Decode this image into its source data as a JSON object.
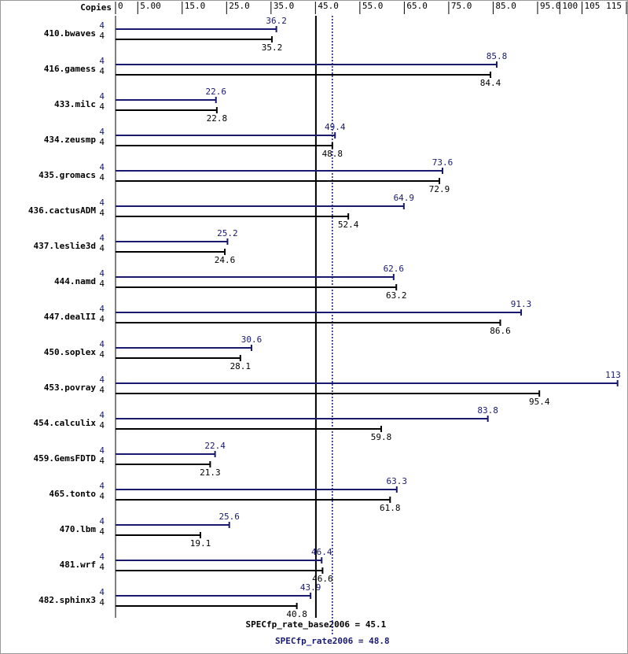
{
  "chart_data": {
    "type": "bar",
    "copies_label": "Copies",
    "categories": [
      "410.bwaves",
      "416.gamess",
      "433.milc",
      "434.zeusmp",
      "435.gromacs",
      "436.cactusADM",
      "437.leslie3d",
      "444.namd",
      "447.dealII",
      "450.soplex",
      "453.povray",
      "454.calculix",
      "459.GemsFDTD",
      "465.tonto",
      "470.lbm",
      "481.wrf",
      "482.sphinx3"
    ],
    "series": [
      {
        "color": "#191970",
        "copies": [
          4,
          4,
          4,
          4,
          4,
          4,
          4,
          4,
          4,
          4,
          4,
          4,
          4,
          4,
          4,
          4,
          4
        ],
        "values": [
          36.2,
          85.8,
          22.6,
          49.4,
          73.6,
          64.9,
          25.2,
          62.6,
          91.3,
          30.6,
          113,
          83.8,
          22.4,
          63.3,
          25.6,
          46.4,
          43.9
        ]
      },
      {
        "color": "#000000",
        "copies": [
          4,
          4,
          4,
          4,
          4,
          4,
          4,
          4,
          4,
          4,
          4,
          4,
          4,
          4,
          4,
          4,
          4
        ],
        "values": [
          35.2,
          84.4,
          22.8,
          48.8,
          72.9,
          52.4,
          24.6,
          63.2,
          86.6,
          28.1,
          95.4,
          59.8,
          21.3,
          61.8,
          19.1,
          46.6,
          40.8
        ]
      }
    ],
    "xlim": [
      0,
      115
    ],
    "xticks": [
      0,
      {
        "value": 5,
        "label": "5.00"
      },
      {
        "value": 15,
        "label": "15.0"
      },
      {
        "value": 25,
        "label": "25.0"
      },
      {
        "value": 35,
        "label": "35.0"
      },
      {
        "value": 45,
        "label": "45.0"
      },
      {
        "value": 55,
        "label": "55.0"
      },
      {
        "value": 65,
        "label": "65.0"
      },
      {
        "value": 75,
        "label": "75.0"
      },
      {
        "value": 85,
        "label": "85.0"
      },
      {
        "value": 95,
        "label": "95.0"
      },
      100,
      105,
      115
    ],
    "reference_lines": [
      {
        "label": "SPECfp_rate_base2006 = ",
        "value": 45.1,
        "color": "#000000",
        "dashed": false
      },
      {
        "label": "SPECfp_rate2006 = ",
        "value": 48.8,
        "color": "#191970",
        "dashed": true
      }
    ]
  }
}
